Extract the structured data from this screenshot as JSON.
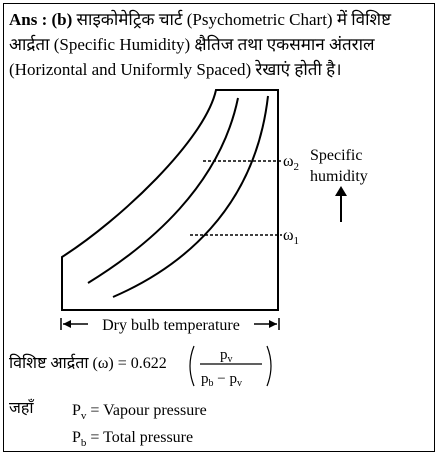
{
  "answer": {
    "prefix": "Ans : (b)",
    "text": "साइकोमेट्रिक चार्ट (Psychometric Chart) में विशिष्ट आर्द्रता (Specific Humidity) क्षैतिज तथा एकसमान अंतराल (Horizontal and Uniformly Spaced) रेखाएं होती है।"
  },
  "diagram": {
    "omega2": "ω",
    "omega2_sub": "2",
    "omega1": "ω",
    "omega1_sub": "1",
    "arrow_label_line1": "Specific",
    "arrow_label_line2": "humidity",
    "x_axis_label": "Dry bulb temperature"
  },
  "formula": {
    "lhs": "विशिष्ट आर्द्रता (ω) = 0.622",
    "num": "p",
    "num_sub": "v",
    "den_a": "p",
    "den_a_sub": "b",
    "den_minus": " − ",
    "den_b": "p",
    "den_b_sub": "v"
  },
  "definitions": {
    "where": "जहाँ",
    "pv_sym": "P",
    "pv_sub": "v",
    "pv_text": " = Vapour pressure",
    "pb_sym": "P",
    "pb_sub": "b",
    "pb_text": " = Total pressure"
  }
}
